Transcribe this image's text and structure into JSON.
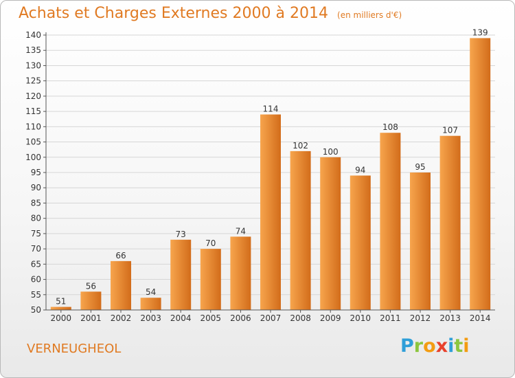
{
  "header": {
    "title": "Achats et Charges Externes 2000 à 2014",
    "unit": "(en milliers d'€)"
  },
  "footer": {
    "commune": "VERNEUGHEOL",
    "logo": "Proxiti"
  },
  "colors": {
    "accent": "#e07a22",
    "bar_light": "#f7a54d",
    "bar_dark": "#d26c1a",
    "grid": "#d6d6d6"
  },
  "chart_data": {
    "type": "bar",
    "title": "Achats et Charges Externes 2000 à 2014",
    "subtitle": "(en milliers d'€)",
    "categories": [
      "2000",
      "2001",
      "2002",
      "2003",
      "2004",
      "2005",
      "2006",
      "2007",
      "2008",
      "2009",
      "2010",
      "2011",
      "2012",
      "2013",
      "2014"
    ],
    "values": [
      51,
      56,
      66,
      54,
      73,
      70,
      74,
      114,
      102,
      100,
      94,
      108,
      95,
      107,
      139
    ],
    "ylim": [
      50,
      140
    ],
    "ytick_step": 5,
    "grid": true,
    "xlabel": "",
    "ylabel": ""
  }
}
